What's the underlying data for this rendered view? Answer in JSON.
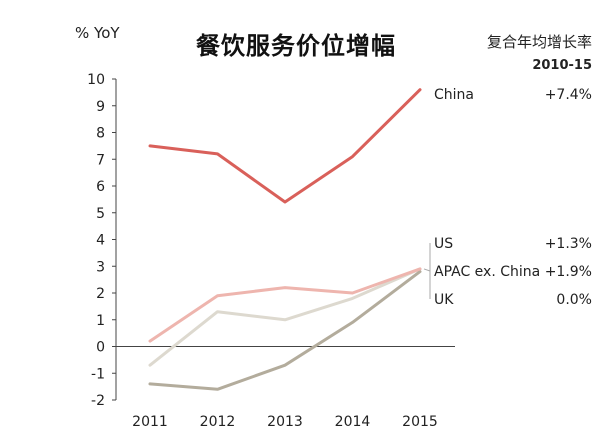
{
  "chart_data": {
    "type": "line",
    "title": "餐饮服务价位增幅",
    "ylabel": "% YoY",
    "cagr_label": "复合年均增长率",
    "cagr_period": "2010-15",
    "x": [
      "2011",
      "2012",
      "2013",
      "2014",
      "2015"
    ],
    "ylim": [
      -2,
      10
    ],
    "yticks": [
      "-2",
      "-1",
      "0",
      "1",
      "2",
      "3",
      "4",
      "5",
      "6",
      "7",
      "8",
      "9",
      "10"
    ],
    "grid": false,
    "legend": "right",
    "series": [
      {
        "name": "China",
        "cagr": "+7.4%",
        "color": "#d9605a",
        "values": [
          7.5,
          7.2,
          5.4,
          7.1,
          9.6
        ]
      },
      {
        "name": "US",
        "cagr": "+1.3%",
        "color": "#ddd9cf",
        "values": [
          -0.7,
          1.3,
          1.0,
          1.8,
          2.9
        ]
      },
      {
        "name": "APAC ex. China",
        "cagr": "+1.9%",
        "color": "#eeb5ae",
        "values": [
          0.2,
          1.9,
          2.2,
          2.0,
          2.9
        ]
      },
      {
        "name": "UK",
        "cagr": "0.0%",
        "color": "#b3ac9c",
        "values": [
          -1.4,
          -1.6,
          -0.7,
          0.9,
          2.8
        ]
      }
    ]
  }
}
